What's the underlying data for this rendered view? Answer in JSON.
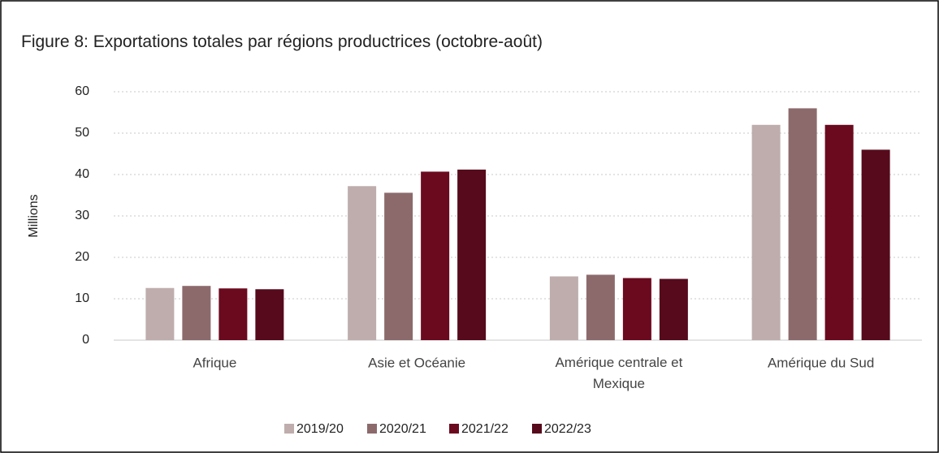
{
  "chart_data": {
    "type": "bar",
    "title": "Figure 8: Exportations totales par régions productrices (octobre-août)",
    "y_label": "Millions",
    "categories": [
      "Afrique",
      "Asie et Océanie",
      "Amérique centrale et Mexique",
      "Amérique du Sud"
    ],
    "series": [
      {
        "name": "2019/20",
        "color": "#bfadad",
        "values": [
          12.6,
          37.2,
          15.4,
          52
        ]
      },
      {
        "name": "2020/21",
        "color": "#8c6a6c",
        "values": [
          13.1,
          35.6,
          15.8,
          56
        ]
      },
      {
        "name": "2021/22",
        "color": "#6b0a1f",
        "values": [
          12.5,
          40.7,
          15.0,
          52
        ]
      },
      {
        "name": "2022/23",
        "color": "#560a1c",
        "values": [
          12.3,
          41.2,
          14.8,
          46
        ]
      }
    ],
    "ylim": [
      0,
      60
    ],
    "yticks": [
      0,
      10,
      20,
      30,
      40,
      50,
      60
    ],
    "grid": true,
    "legend": "bottom"
  }
}
